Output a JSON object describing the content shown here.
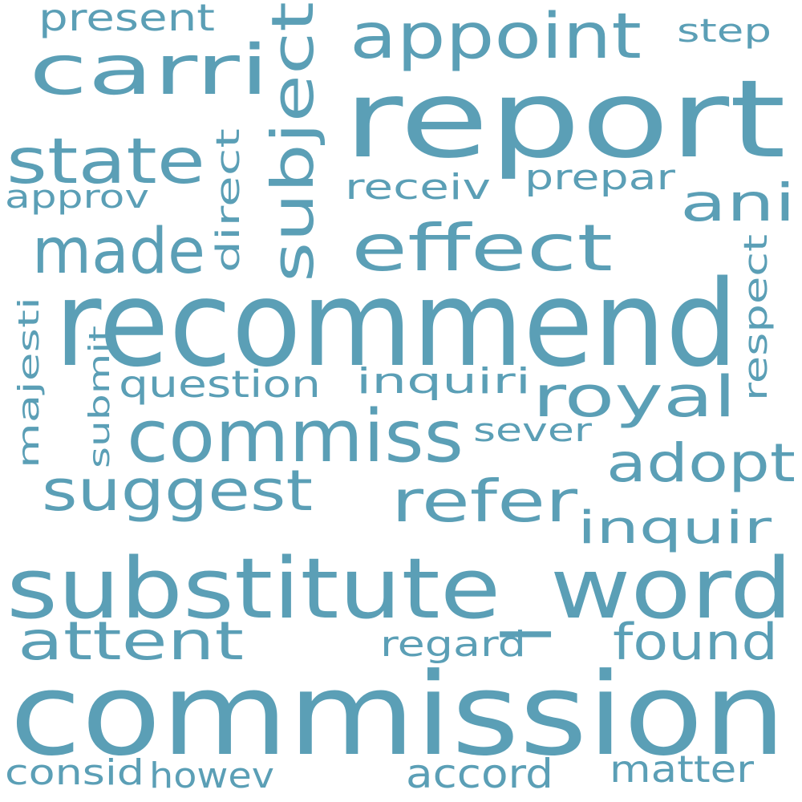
{
  "color": "#5b9fb6",
  "background": "#ffffff",
  "words": [
    {
      "id": "recommend",
      "text": "recommend"
    },
    {
      "id": "commission",
      "text": "commission"
    },
    {
      "id": "substitute_word",
      "text": "substitute_word"
    },
    {
      "id": "report",
      "text": "report"
    },
    {
      "id": "commiss",
      "text": "commiss"
    },
    {
      "id": "appoint",
      "text": "appoint"
    },
    {
      "id": "carri",
      "text": "carri"
    },
    {
      "id": "effect",
      "text": "effect"
    },
    {
      "id": "made",
      "text": "made"
    },
    {
      "id": "state",
      "text": "state"
    },
    {
      "id": "subject",
      "text": "subject"
    },
    {
      "id": "royal",
      "text": "royal"
    },
    {
      "id": "refer",
      "text": "refer"
    },
    {
      "id": "suggest",
      "text": "suggest"
    },
    {
      "id": "attent",
      "text": "attent"
    },
    {
      "id": "adopt",
      "text": "adopt"
    },
    {
      "id": "found",
      "text": "found"
    },
    {
      "id": "ani",
      "text": "ani"
    },
    {
      "id": "inquir",
      "text": "inquir"
    },
    {
      "id": "accord",
      "text": "accord"
    },
    {
      "id": "question",
      "text": "question"
    },
    {
      "id": "inquiri",
      "text": "inquiri"
    },
    {
      "id": "prepar",
      "text": "prepar"
    },
    {
      "id": "receiv",
      "text": "receiv"
    },
    {
      "id": "present",
      "text": "present"
    },
    {
      "id": "regard",
      "text": "regard"
    },
    {
      "id": "matter",
      "text": "matter"
    },
    {
      "id": "consid",
      "text": "consid"
    },
    {
      "id": "howev",
      "text": "howev"
    },
    {
      "id": "approv",
      "text": "approv"
    },
    {
      "id": "step",
      "text": "step"
    },
    {
      "id": "sever",
      "text": "sever"
    },
    {
      "id": "direct",
      "text": "direct"
    },
    {
      "id": "respect",
      "text": "respect"
    },
    {
      "id": "majesti",
      "text": "majesti"
    },
    {
      "id": "submit",
      "text": "submit"
    }
  ]
}
